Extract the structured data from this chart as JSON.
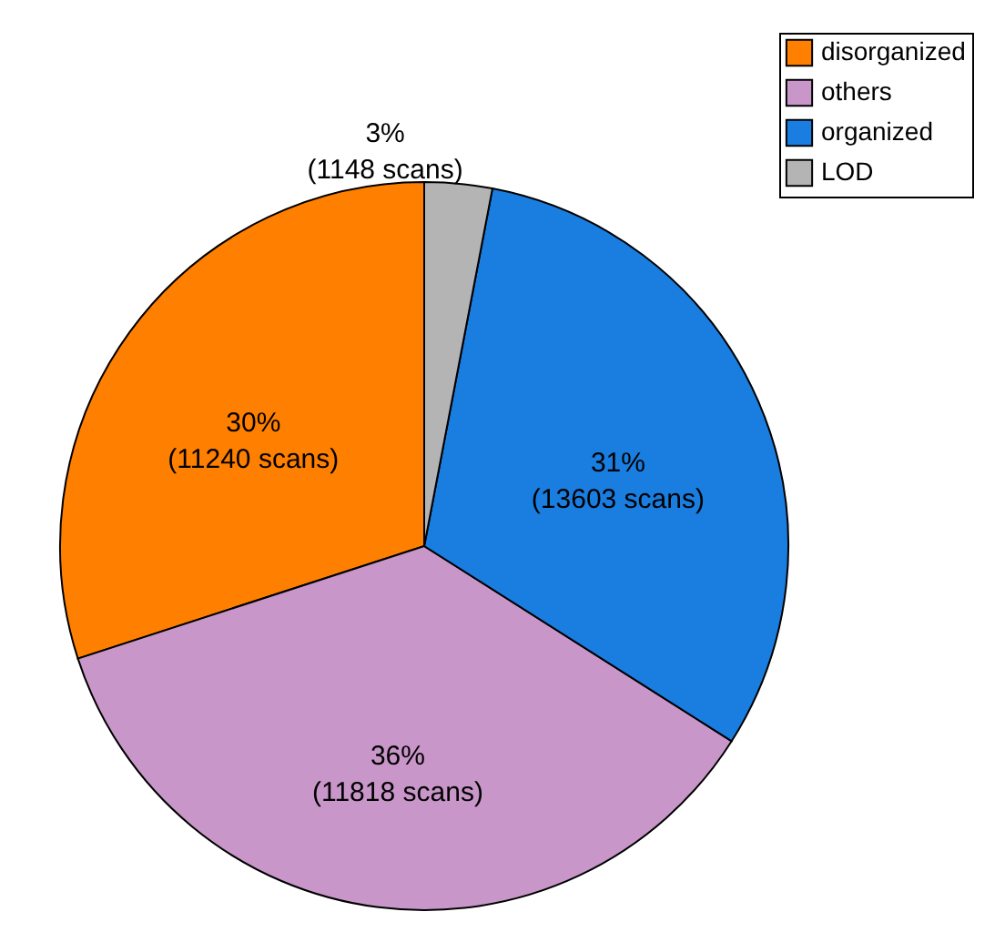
{
  "chart_data": {
    "type": "pie",
    "categories": [
      "disorganized",
      "others",
      "organized",
      "LOD"
    ],
    "values": [
      30,
      36,
      31,
      3
    ],
    "colors": [
      "#ff7f00",
      "#c896c8",
      "#1a7de0",
      "#b4b4b4"
    ],
    "value_labels": [
      "30%\n(11240 scans)",
      "36%\n(11818 scans)",
      "31%\n(13603 scans)",
      "3%\n(1148 scans)"
    ],
    "legend": "top right"
  }
}
